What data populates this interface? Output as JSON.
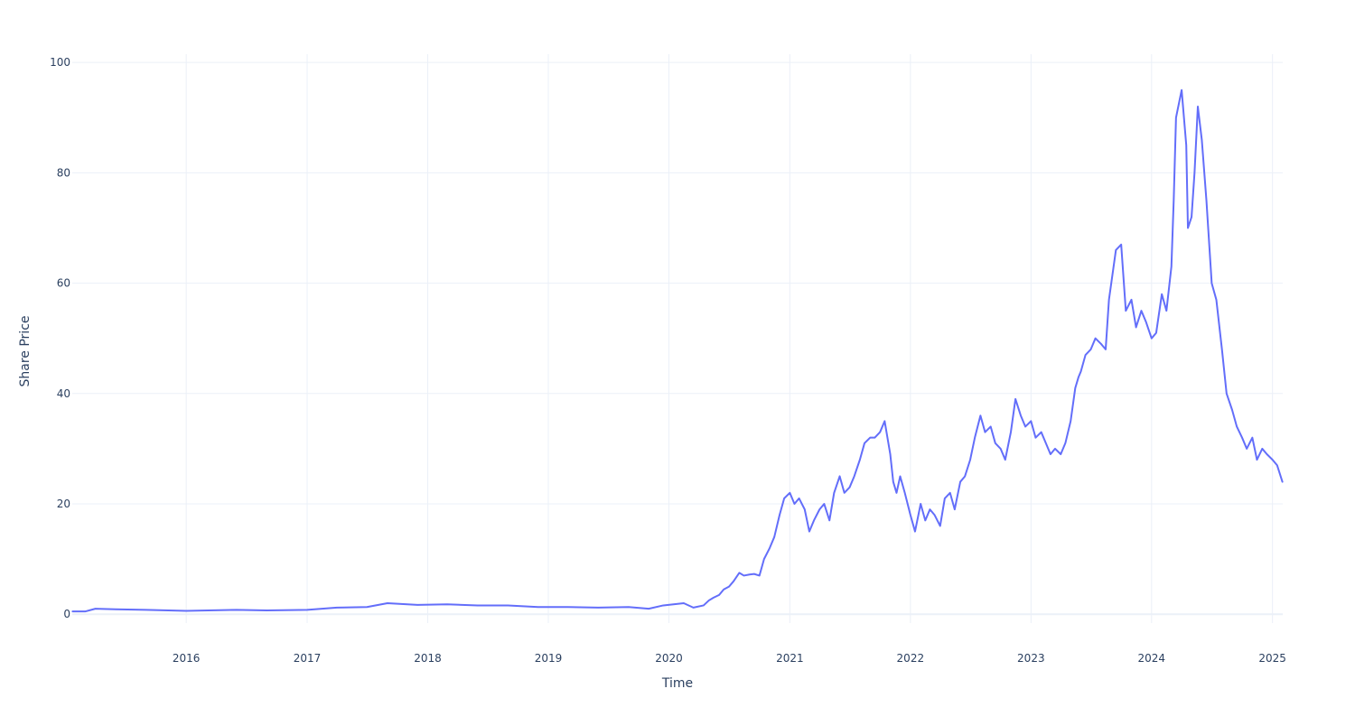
{
  "chart_data": {
    "type": "line",
    "title": "",
    "xlabel": "Time",
    "ylabel": "Share Price",
    "x_ticks": [
      "2016",
      "2017",
      "2018",
      "2019",
      "2020",
      "2021",
      "2022",
      "2023",
      "2024",
      "2025"
    ],
    "y_ticks": [
      0,
      20,
      40,
      60,
      80,
      100
    ],
    "xlim": [
      "2015-01-21",
      "2025-02-01"
    ],
    "ylim": [
      -1.6,
      101.5
    ],
    "grid": true,
    "legend": "none",
    "colors": {
      "line": "#636efa",
      "grid": "#ebf0f8",
      "text": "#2a3f5f",
      "zeroline": "#ebf0f8"
    },
    "series": [
      {
        "x": [
          "2015-01-22",
          "2015-03-01",
          "2015-04-01",
          "2015-06-01",
          "2015-09-01",
          "2016-01-01",
          "2016-06-01",
          "2016-09-01",
          "2017-01-01",
          "2017-04-01",
          "2017-07-01",
          "2017-09-01",
          "2017-12-01",
          "2018-03-01",
          "2018-06-01",
          "2018-09-01",
          "2018-12-01",
          "2019-03-01",
          "2019-06-01",
          "2019-09-01",
          "2019-11-01",
          "2019-12-15",
          "2020-02-15",
          "2020-03-15",
          "2020-04-15",
          "2020-05-01",
          "2020-05-15",
          "2020-06-01",
          "2020-06-15",
          "2020-07-01",
          "2020-07-15",
          "2020-08-01",
          "2020-08-15",
          "2020-09-01",
          "2020-09-15",
          "2020-10-01",
          "2020-10-15",
          "2020-11-01",
          "2020-11-15",
          "2020-12-01",
          "2020-12-15",
          "2021-01-01",
          "2021-01-15",
          "2021-01-29",
          "2021-02-15",
          "2021-03-01",
          "2021-03-15",
          "2021-04-01",
          "2021-04-15",
          "2021-05-01",
          "2021-05-15",
          "2021-06-01",
          "2021-06-15",
          "2021-07-01",
          "2021-07-15",
          "2021-08-01",
          "2021-08-15",
          "2021-09-01",
          "2021-09-15",
          "2021-10-01",
          "2021-10-15",
          "2021-11-01",
          "2021-11-10",
          "2021-11-20",
          "2021-12-01",
          "2021-12-15",
          "2022-01-01",
          "2022-01-15",
          "2022-02-01",
          "2022-02-15",
          "2022-03-01",
          "2022-03-15",
          "2022-04-01",
          "2022-04-15",
          "2022-05-01",
          "2022-05-15",
          "2022-06-01",
          "2022-06-15",
          "2022-07-01",
          "2022-07-15",
          "2022-08-01",
          "2022-08-15",
          "2022-09-01",
          "2022-09-15",
          "2022-10-01",
          "2022-10-15",
          "2022-11-01",
          "2022-11-15",
          "2022-12-01",
          "2022-12-15",
          "2023-01-01",
          "2023-01-15",
          "2023-02-01",
          "2023-02-15",
          "2023-03-01",
          "2023-03-15",
          "2023-04-01",
          "2023-04-15",
          "2023-05-01",
          "2023-05-15",
          "2023-05-25",
          "2023-06-01",
          "2023-06-15",
          "2023-07-01",
          "2023-07-15",
          "2023-08-01",
          "2023-08-15",
          "2023-08-25",
          "2023-09-01",
          "2023-09-15",
          "2023-10-01",
          "2023-10-15",
          "2023-11-01",
          "2023-11-15",
          "2023-12-01",
          "2023-12-15",
          "2024-01-01",
          "2024-01-15",
          "2024-02-01",
          "2024-02-15",
          "2024-03-01",
          "2024-03-08",
          "2024-03-15",
          "2024-04-01",
          "2024-04-15",
          "2024-04-20",
          "2024-05-01",
          "2024-05-10",
          "2024-05-20",
          "2024-06-01",
          "2024-06-15",
          "2024-07-01",
          "2024-07-15",
          "2024-08-01",
          "2024-08-15",
          "2024-09-01",
          "2024-09-15",
          "2024-10-01",
          "2024-10-15",
          "2024-11-01",
          "2024-11-15",
          "2024-12-01",
          "2024-12-15",
          "2025-01-01",
          "2025-01-15",
          "2025-01-31"
        ],
        "y": [
          0.5,
          0.5,
          1.0,
          0.9,
          0.8,
          0.6,
          0.8,
          0.7,
          0.8,
          1.2,
          1.3,
          2.0,
          1.7,
          1.8,
          1.6,
          1.6,
          1.3,
          1.3,
          1.2,
          1.3,
          1.0,
          1.6,
          2.0,
          1.2,
          1.6,
          2.5,
          3.0,
          3.5,
          4.5,
          5.0,
          6.0,
          7.5,
          7.0,
          7.2,
          7.3,
          7.0,
          10.0,
          12.0,
          14.0,
          18.0,
          21.0,
          22.0,
          20.0,
          21.0,
          19.0,
          15.0,
          17.0,
          19.0,
          20.0,
          17.0,
          22.0,
          25.0,
          22.0,
          23.0,
          25.0,
          28.0,
          31.0,
          32.0,
          32.0,
          33.0,
          35.0,
          29.0,
          24.0,
          22.0,
          25.0,
          22.0,
          18.0,
          15.0,
          20.0,
          17.0,
          19.0,
          18.0,
          16.0,
          21.0,
          22.0,
          19.0,
          24.0,
          25.0,
          28.0,
          32.0,
          36.0,
          33.0,
          34.0,
          31.0,
          30.0,
          28.0,
          33.0,
          39.0,
          36.0,
          34.0,
          35.0,
          32.0,
          33.0,
          31.0,
          29.0,
          30.0,
          29.0,
          31.0,
          35.0,
          41.0,
          43.0,
          44.0,
          47.0,
          48.0,
          50.0,
          49.0,
          48.0,
          57.0,
          60.0,
          66.0,
          67.0,
          55.0,
          57.0,
          52.0,
          55.0,
          53.0,
          50.0,
          51.0,
          58.0,
          55.0,
          63.0,
          75.0,
          90.0,
          95.0,
          85.0,
          70.0,
          72.0,
          80.0,
          92.0,
          86.0,
          75.0,
          60.0,
          57.0,
          48.0,
          40.0,
          37.0,
          34.0,
          32.0,
          30.0,
          32.0,
          28.0,
          30.0,
          29.0,
          28.0,
          27.0,
          24.0
        ]
      }
    ]
  }
}
